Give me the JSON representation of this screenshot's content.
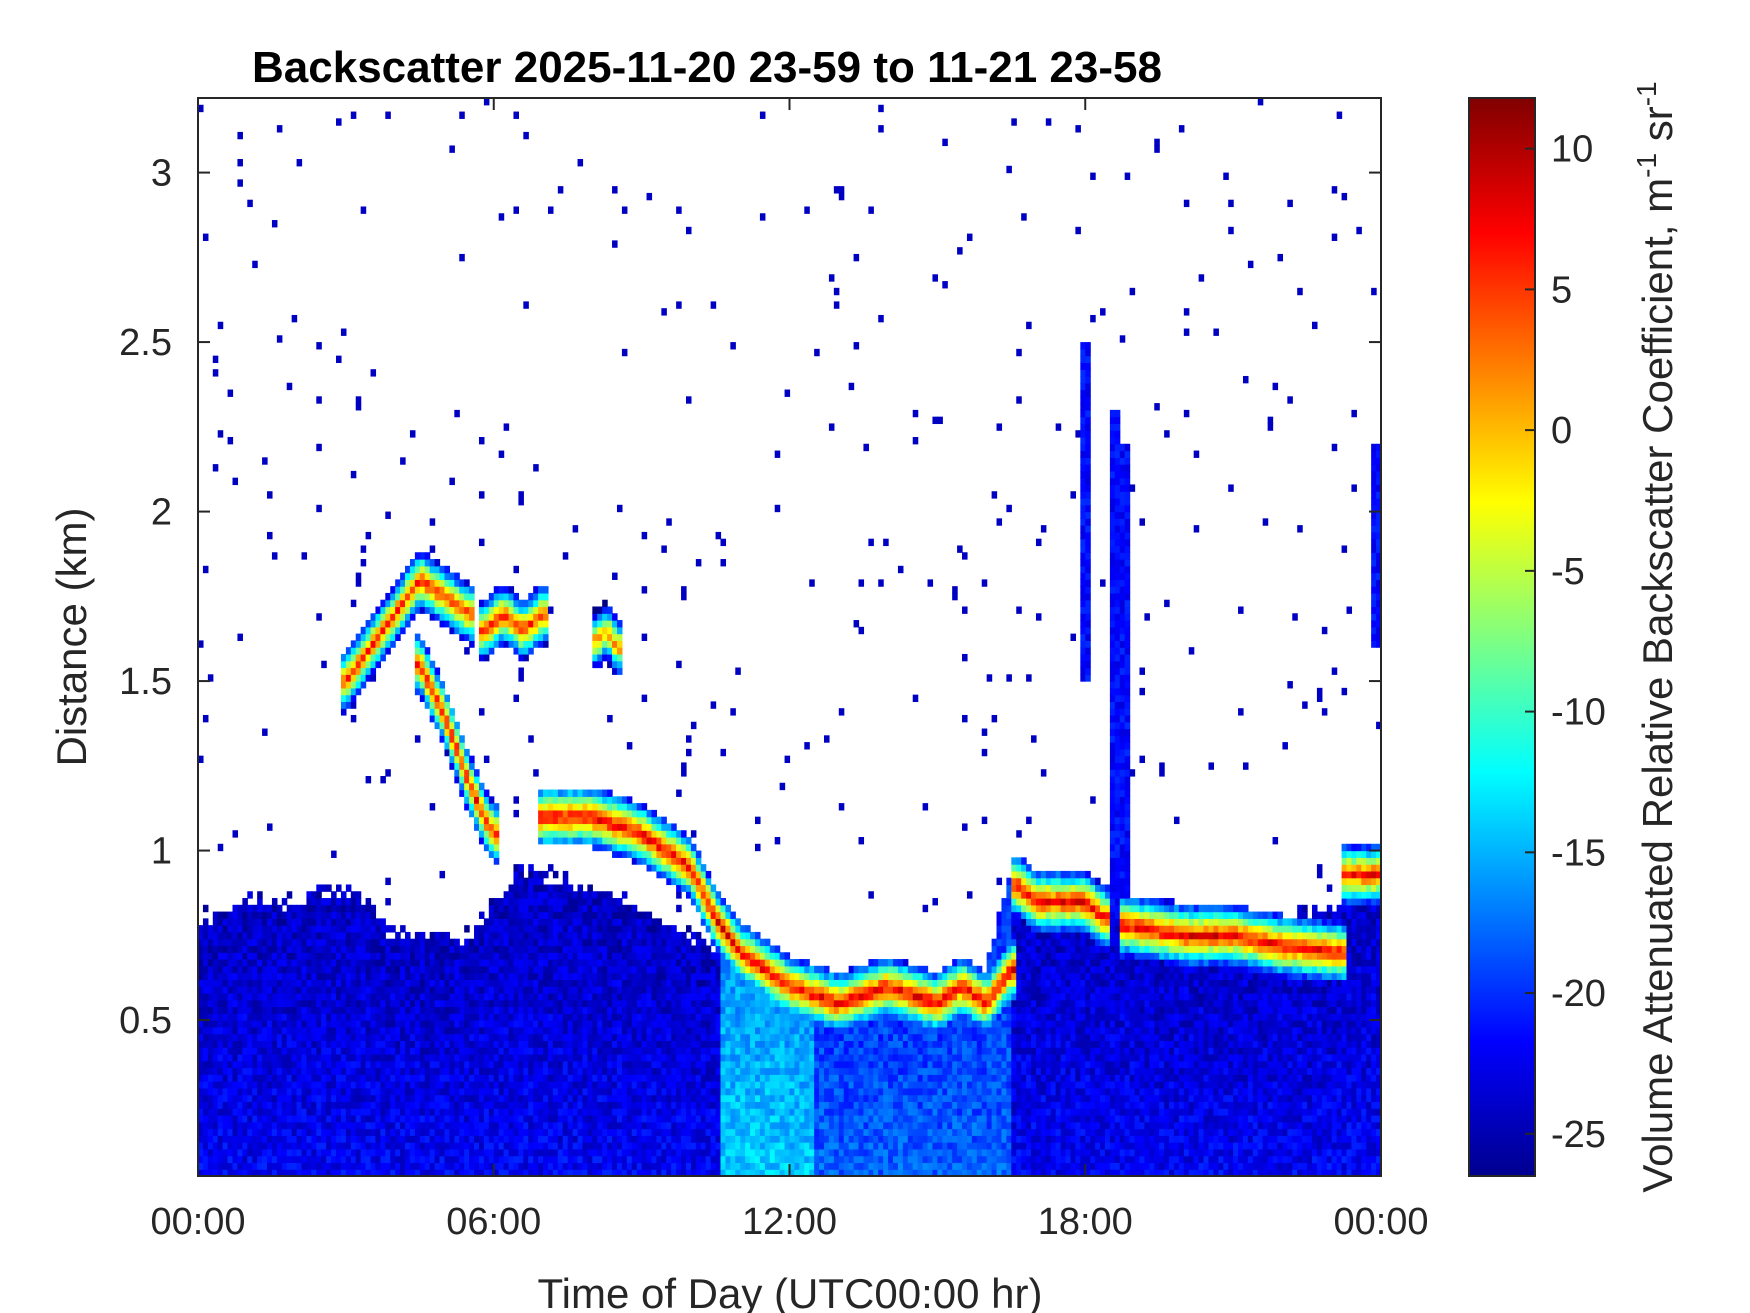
{
  "chart_data": {
    "type": "heatmap",
    "title": "Backscatter 2025-11-20 23-59 to 11-21 23-58",
    "xlabel": "Time of Day (UTC00:00 hr)",
    "ylabel": "Distance (km)",
    "colorbar_label": "Volume Attenuated Relative Backscatter Coefficient, m",
    "colorbar_unit_parts": [
      "-1",
      " sr",
      "-1"
    ],
    "xlim": [
      0,
      24
    ],
    "ylim": [
      0.04,
      3.22
    ],
    "clim": [
      -26.5,
      11.8
    ],
    "x_ticks": [
      {
        "value": 0,
        "label": "00:00"
      },
      {
        "value": 6,
        "label": "06:00"
      },
      {
        "value": 12,
        "label": "12:00"
      },
      {
        "value": 18,
        "label": "18:00"
      },
      {
        "value": 24,
        "label": "00:00"
      }
    ],
    "y_ticks": [
      {
        "value": 0.5,
        "label": "0.5"
      },
      {
        "value": 1,
        "label": "1"
      },
      {
        "value": 1.5,
        "label": "1.5"
      },
      {
        "value": 2,
        "label": "2"
      },
      {
        "value": 2.5,
        "label": "2.5"
      },
      {
        "value": 3,
        "label": "3"
      }
    ],
    "colorbar_ticks": [
      {
        "value": -25,
        "label": "-25"
      },
      {
        "value": -20,
        "label": "-20"
      },
      {
        "value": -15,
        "label": "-15"
      },
      {
        "value": -10,
        "label": "-10"
      },
      {
        "value": -5,
        "label": "-5"
      },
      {
        "value": 0,
        "label": "0"
      },
      {
        "value": 5,
        "label": "5"
      },
      {
        "value": 10,
        "label": "10"
      }
    ],
    "colormap": "jet",
    "boundary_layer_top_km": [
      [
        0,
        0.8
      ],
      [
        1,
        0.85
      ],
      [
        2,
        0.85
      ],
      [
        3,
        0.9
      ],
      [
        4,
        0.75
      ],
      [
        5.5,
        0.75
      ],
      [
        6.5,
        0.95
      ],
      [
        8,
        0.9
      ],
      [
        10,
        0.75
      ],
      [
        11,
        0.7
      ],
      [
        12,
        0.6
      ],
      [
        15,
        0.6
      ],
      [
        16,
        0.65
      ],
      [
        16.5,
        0.95
      ],
      [
        18,
        0.9
      ],
      [
        19,
        0.85
      ],
      [
        22,
        0.8
      ],
      [
        23.2,
        0.85
      ],
      [
        23.3,
        1.0
      ],
      [
        24,
        1.0
      ]
    ],
    "cloud_layers": [
      {
        "x": [
          3.0,
          3.5,
          4.0,
          4.5,
          5.0,
          5.5
        ],
        "y_km": [
          1.5,
          1.6,
          1.7,
          1.8,
          1.75,
          1.7
        ],
        "peak": 6
      },
      {
        "x": [
          4.5,
          5.0,
          5.5,
          5.8,
          6.0
        ],
        "y_km": [
          1.55,
          1.4,
          1.2,
          1.1,
          1.05
        ],
        "peak": 7
      },
      {
        "x": [
          5.8,
          6.2,
          6.6,
          7.0
        ],
        "y_km": [
          1.65,
          1.7,
          1.65,
          1.7
        ],
        "peak": 6
      },
      {
        "x": [
          8.1,
          8.3,
          8.5
        ],
        "y_km": [
          1.62,
          1.65,
          1.6
        ],
        "peak": 3
      },
      {
        "x": [
          7.0,
          8.0,
          9.0,
          10.0,
          10.5,
          11.0,
          12.0,
          13.0,
          14.0,
          15.0,
          15.5,
          16.0,
          16.5
        ],
        "y_km": [
          1.1,
          1.1,
          1.05,
          0.95,
          0.8,
          0.7,
          0.6,
          0.55,
          0.6,
          0.55,
          0.6,
          0.55,
          0.65
        ],
        "peak": 8
      },
      {
        "x": [
          16.6,
          17.0,
          17.5,
          18.0,
          18.4
        ],
        "y_km": [
          0.9,
          0.85,
          0.85,
          0.85,
          0.8
        ],
        "peak": 8
      },
      {
        "x": [
          18.8,
          20.0,
          21.0,
          22.0,
          23.2
        ],
        "y_km": [
          0.78,
          0.75,
          0.75,
          0.72,
          0.7
        ],
        "peak": 8
      },
      {
        "x": [
          23.3,
          23.7,
          24.0
        ],
        "y_km": [
          0.93,
          0.93,
          0.93
        ],
        "peak": 7
      }
    ],
    "precip_streaks": [
      {
        "x": 18.0,
        "y_top_km": 2.5,
        "y_bottom_km": 1.5
      },
      {
        "x": 18.6,
        "y_top_km": 2.3,
        "y_bottom_km": 0.8
      },
      {
        "x": 18.8,
        "y_top_km": 2.2,
        "y_bottom_km": 0.8
      },
      {
        "x": 23.9,
        "y_top_km": 2.2,
        "y_bottom_km": 1.6
      }
    ]
  }
}
